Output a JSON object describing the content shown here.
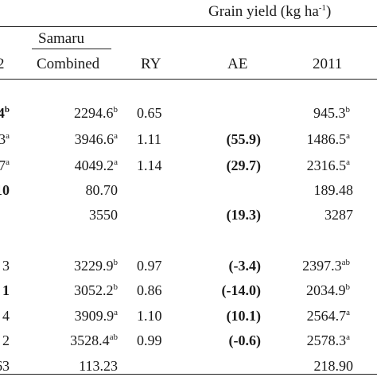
{
  "header": {
    "group_title_text": "Grain yield (kg ha",
    "group_title_sup": "-1",
    "group_title_close": ")",
    "location": "Samaru",
    "columns": [
      "2",
      "Combined",
      "RY",
      "AE",
      "2011"
    ]
  },
  "rows": [
    {
      "c0": "4",
      "c0_sup": "b",
      "combined": "2294.6",
      "combined_sup": "b",
      "ry": "0.65",
      "ae": "",
      "y2011": "945.3",
      "y2011_sup": "b"
    },
    {
      "c0": "3",
      "c0_sup": "a",
      "combined": "3946.6",
      "combined_sup": "a",
      "ry": "1.11",
      "ae": "(55.9)",
      "y2011": "1486.5",
      "y2011_sup": "a"
    },
    {
      "c0": "7",
      "c0_sup": "a",
      "combined": "4049.2",
      "combined_sup": "a",
      "ry": "1.14",
      "ae": "(29.7)",
      "y2011": "2316.5",
      "y2011_sup": "a"
    },
    {
      "c0": "10",
      "c0_sup": "",
      "combined": "80.70",
      "combined_sup": "",
      "ry": "",
      "ae": "",
      "y2011": "189.48",
      "y2011_sup": ""
    },
    {
      "c0": "",
      "c0_sup": "",
      "combined": "3550",
      "combined_sup": "",
      "ry": "",
      "ae": "(19.3)",
      "y2011": "3287",
      "y2011_sup": ""
    },
    {
      "c0": "3",
      "c0_sup": "",
      "combined": "3229.9",
      "combined_sup": "b",
      "ry": "0.97",
      "ae": "(-3.4)",
      "y2011": "2397.3",
      "y2011_sup": "ab"
    },
    {
      "c0": "1",
      "c0_sup": "",
      "combined": "3052.2",
      "combined_sup": "b",
      "ry": "0.86",
      "ae": "(-14.0)",
      "y2011": "2034.9",
      "y2011_sup": "b"
    },
    {
      "c0": "4",
      "c0_sup": "",
      "combined": "3909.9",
      "combined_sup": "a",
      "ry": "1.10",
      "ae": "(10.1)",
      "y2011": "2564.7",
      "y2011_sup": "a"
    },
    {
      "c0": "2",
      "c0_sup": "",
      "combined": "3528.4",
      "combined_sup": "ab",
      "ry": "0.99",
      "ae": "(-0.6)",
      "y2011": "2578.3",
      "y2011_sup": "a"
    },
    {
      "c0": "63",
      "c0_sup": "",
      "combined": "113.23",
      "combined_sup": "",
      "ry": "",
      "ae": "",
      "y2011": "218.90",
      "y2011_sup": ""
    }
  ]
}
